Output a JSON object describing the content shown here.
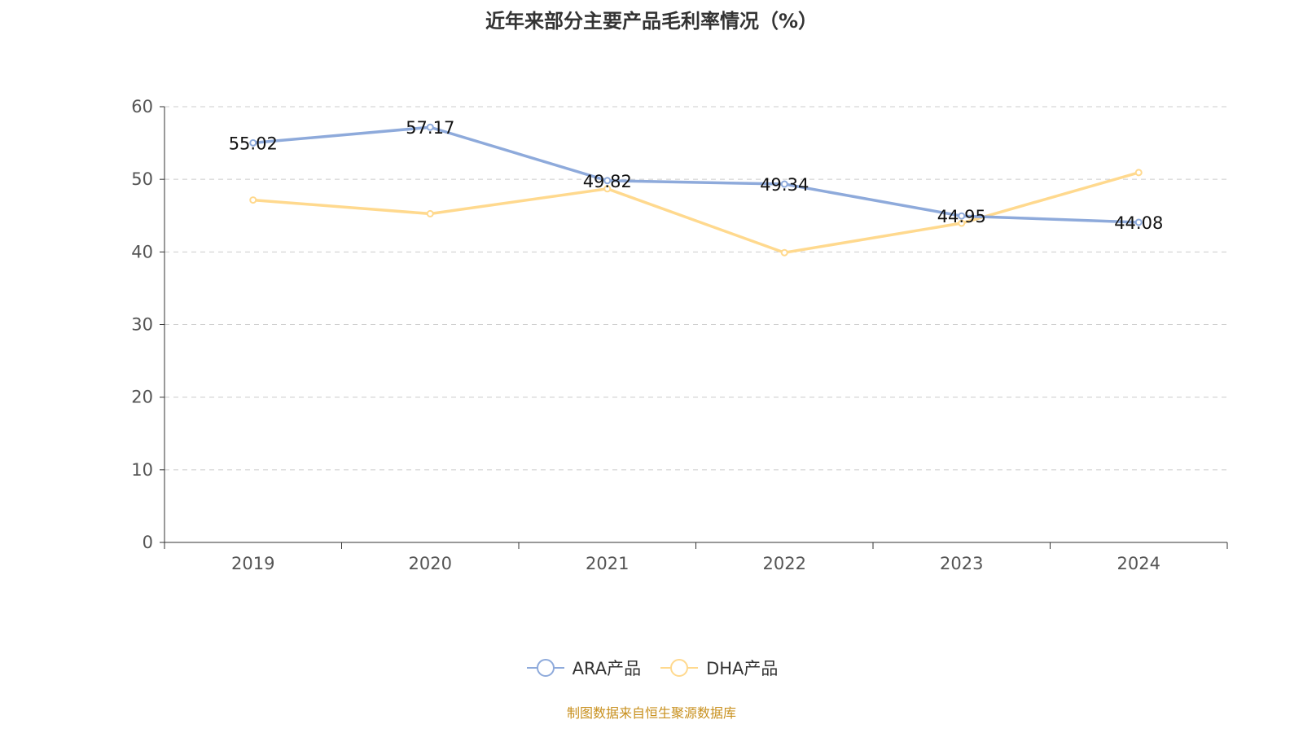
{
  "chart_data": {
    "type": "line",
    "title": "近年来部分主要产品毛利率情况（%）",
    "categories": [
      "2019",
      "2020",
      "2021",
      "2022",
      "2023",
      "2024"
    ],
    "series": [
      {
        "name": "ARA产品",
        "color": "#8eaadb",
        "values": [
          55.02,
          57.17,
          49.82,
          49.34,
          44.95,
          44.08
        ],
        "labels": [
          "55.02",
          "57.17",
          "49.82",
          "49.34",
          "44.95",
          "44.08"
        ]
      },
      {
        "name": "DHA产品",
        "color": "#ffd98e",
        "values": [
          47.15,
          45.26,
          48.7,
          39.9,
          43.96,
          50.93
        ]
      }
    ],
    "ylim": [
      0,
      60
    ],
    "yticks": [
      "0",
      "10",
      "20",
      "30",
      "40",
      "50",
      "60"
    ],
    "grid": true,
    "legend": "bottom"
  },
  "source": "制图数据来自恒生聚源数据库"
}
